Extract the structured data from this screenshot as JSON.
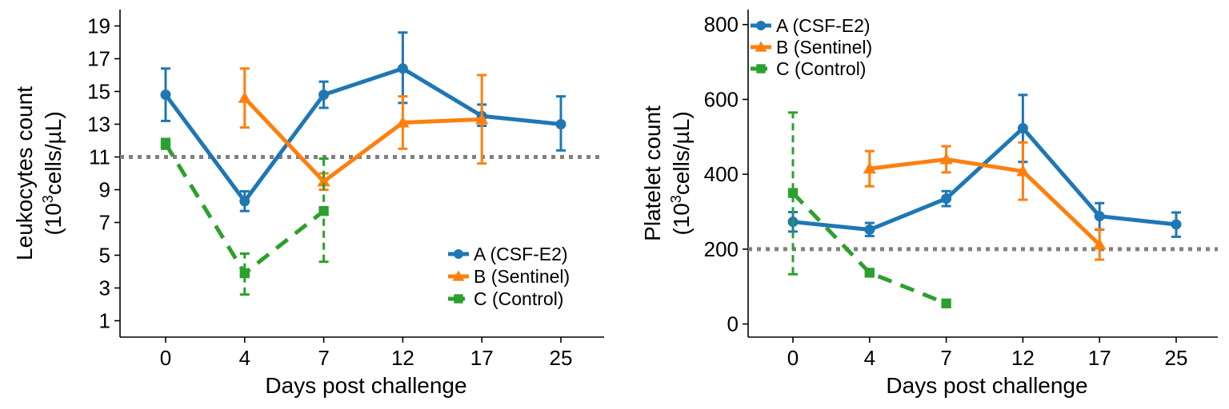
{
  "chart_data": [
    {
      "type": "line",
      "title": "",
      "xlabel": "Days post challenge",
      "ylabel_line1": "Leukocytes count",
      "ylabel_line2_prefix": "(10",
      "ylabel_line2_sup": "3",
      "ylabel_line2_suffix": "cells/µL)",
      "categories": [
        "0",
        "4",
        "7",
        "12",
        "17",
        "25"
      ],
      "ylim": [
        0,
        20
      ],
      "yticks": [
        "1",
        "3",
        "5",
        "7",
        "9",
        "11",
        "13",
        "15",
        "17",
        "19"
      ],
      "grid": false,
      "legend_position": "bottom-right",
      "reference_line": {
        "value": 11,
        "style": "dotted",
        "color": "#808080"
      },
      "series": [
        {
          "name": "A (CSF-E2)",
          "color": "#1f77b4",
          "marker": "circle",
          "dashed": false,
          "points": [
            {
              "x": "0",
              "y": 14.8,
              "err_low": 13.2,
              "err_high": 16.4
            },
            {
              "x": "4",
              "y": 8.3,
              "err_low": 7.7,
              "err_high": 8.9
            },
            {
              "x": "7",
              "y": 14.8,
              "err_low": 14.0,
              "err_high": 15.6
            },
            {
              "x": "12",
              "y": 16.4,
              "err_low": 14.3,
              "err_high": 18.6
            },
            {
              "x": "17",
              "y": 13.5,
              "err_low": 12.9,
              "err_high": 14.2
            },
            {
              "x": "25",
              "y": 13.0,
              "err_low": 11.4,
              "err_high": 14.7
            }
          ]
        },
        {
          "name": "B (Sentinel)",
          "color": "#ff7f0e",
          "marker": "triangle",
          "dashed": false,
          "points": [
            {
              "x": "4",
              "y": 14.6,
              "err_low": 12.8,
              "err_high": 16.4
            },
            {
              "x": "7",
              "y": 9.5,
              "err_low": 9.0,
              "err_high": 10.0
            },
            {
              "x": "12",
              "y": 13.1,
              "err_low": 11.5,
              "err_high": 14.7
            },
            {
              "x": "17",
              "y": 13.3,
              "err_low": 10.6,
              "err_high": 16.0
            }
          ]
        },
        {
          "name": "C (Control)",
          "color": "#2ca02c",
          "marker": "square",
          "dashed": true,
          "points": [
            {
              "x": "0",
              "y": 11.8,
              "err_low": 11.5,
              "err_high": 12.1
            },
            {
              "x": "4",
              "y": 3.9,
              "err_low": 2.6,
              "err_high": 5.1
            },
            {
              "x": "7",
              "y": 7.7,
              "err_low": 4.6,
              "err_high": 10.9
            }
          ]
        }
      ]
    },
    {
      "type": "line",
      "title": "",
      "xlabel": "Days post challenge",
      "ylabel_line1": "Platelet count",
      "ylabel_line2_prefix": "(10",
      "ylabel_line2_sup": "3",
      "ylabel_line2_suffix": "cells/µL)",
      "categories": [
        "0",
        "4",
        "7",
        "12",
        "17",
        "25"
      ],
      "ylim": [
        -35,
        840
      ],
      "yticks": [
        "0",
        "200",
        "400",
        "600",
        "800"
      ],
      "grid": false,
      "legend_position": "top-left",
      "reference_line": {
        "value": 200,
        "style": "dotted",
        "color": "#808080"
      },
      "series": [
        {
          "name": "A (CSF-E2)",
          "color": "#1f77b4",
          "marker": "circle",
          "dashed": false,
          "points": [
            {
              "x": "0",
              "y": 273,
              "err_low": 247,
              "err_high": 299
            },
            {
              "x": "4",
              "y": 252,
              "err_low": 235,
              "err_high": 270
            },
            {
              "x": "7",
              "y": 335,
              "err_low": 315,
              "err_high": 355
            },
            {
              "x": "12",
              "y": 523,
              "err_low": 433,
              "err_high": 612
            },
            {
              "x": "17",
              "y": 288,
              "err_low": 252,
              "err_high": 323
            },
            {
              "x": "25",
              "y": 266,
              "err_low": 233,
              "err_high": 298
            }
          ]
        },
        {
          "name": "B (Sentinel)",
          "color": "#ff7f0e",
          "marker": "triangle",
          "dashed": false,
          "points": [
            {
              "x": "4",
              "y": 415,
              "err_low": 368,
              "err_high": 462
            },
            {
              "x": "7",
              "y": 440,
              "err_low": 405,
              "err_high": 475
            },
            {
              "x": "12",
              "y": 408,
              "err_low": 332,
              "err_high": 485
            },
            {
              "x": "17",
              "y": 212,
              "err_low": 172,
              "err_high": 253
            }
          ]
        },
        {
          "name": "C (Control)",
          "color": "#2ca02c",
          "marker": "square",
          "dashed": true,
          "points": [
            {
              "x": "0",
              "y": 350,
              "err_low": 133,
              "err_high": 565
            },
            {
              "x": "4",
              "y": 137,
              "err_low": 137,
              "err_high": 137
            },
            {
              "x": "7",
              "y": 55,
              "err_low": 55,
              "err_high": 55
            }
          ]
        }
      ]
    }
  ]
}
